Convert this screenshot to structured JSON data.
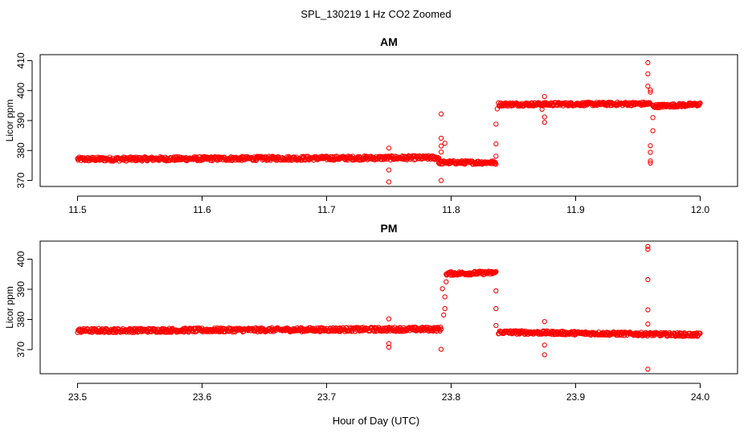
{
  "figure": {
    "title": "SPL_130219  1 Hz CO2 Zoomed",
    "xlabel": "Hour of Day (UTC)"
  },
  "colors": {
    "points": "#ff0000",
    "axes": "#000000"
  },
  "chart_data": [
    {
      "type": "scatter",
      "title": "AM",
      "ylabel": "Licor ppm",
      "xlim": [
        11.47,
        12.03
      ],
      "ylim": [
        368,
        412
      ],
      "xticks": [
        "11.5",
        "11.6",
        "11.7",
        "11.8",
        "11.9",
        "12.0"
      ],
      "xtick_values": [
        11.5,
        11.6,
        11.7,
        11.8,
        11.9,
        12.0
      ],
      "yticks": [
        "370",
        "380",
        "390",
        "400",
        "410"
      ],
      "ytick_values": [
        370,
        380,
        390,
        400,
        410
      ],
      "segments": [
        {
          "x_start": 11.5,
          "x_end": 11.79,
          "y_start": 377.1,
          "y_end": 377.6,
          "spread": 0.7
        },
        {
          "x_start": 11.79,
          "x_end": 11.836,
          "y_start": 376.0,
          "y_end": 376.0,
          "spread": 0.6
        },
        {
          "x_start": 11.838,
          "x_end": 11.96,
          "y_start": 395.4,
          "y_end": 395.6,
          "spread": 0.6
        },
        {
          "x_start": 11.962,
          "x_end": 12.0,
          "y_start": 394.8,
          "y_end": 395.4,
          "spread": 0.6
        }
      ],
      "outliers": [
        [
          11.75,
          380.8
        ],
        [
          11.75,
          373.5
        ],
        [
          11.75,
          369.5
        ],
        [
          11.792,
          392.2
        ],
        [
          11.792,
          384.1
        ],
        [
          11.792,
          381.5
        ],
        [
          11.792,
          379.5
        ],
        [
          11.792,
          370.0
        ],
        [
          11.795,
          382.4
        ],
        [
          11.836,
          388.8
        ],
        [
          11.836,
          382.2
        ],
        [
          11.836,
          378.1
        ],
        [
          11.837,
          393.9
        ],
        [
          11.875,
          398.0
        ],
        [
          11.875,
          391.2
        ],
        [
          11.875,
          389.4
        ],
        [
          11.873,
          393.8
        ],
        [
          11.958,
          409.3
        ],
        [
          11.958,
          405.6
        ],
        [
          11.958,
          401.5
        ],
        [
          11.96,
          400.2
        ],
        [
          11.96,
          399.5
        ],
        [
          11.962,
          391.0
        ],
        [
          11.962,
          386.6
        ],
        [
          11.96,
          381.6
        ],
        [
          11.96,
          379.4
        ],
        [
          11.96,
          376.5
        ],
        [
          11.96,
          375.8
        ]
      ]
    },
    {
      "type": "scatter",
      "title": "PM",
      "ylabel": "Licor ppm",
      "xlim": [
        23.47,
        24.03
      ],
      "ylim": [
        362,
        406
      ],
      "xticks": [
        "23.5",
        "23.6",
        "23.7",
        "23.8",
        "23.9",
        "24.0"
      ],
      "xtick_values": [
        23.5,
        23.6,
        23.7,
        23.8,
        23.9,
        24.0
      ],
      "yticks": [
        "370",
        "380",
        "390",
        "400"
      ],
      "ytick_values": [
        370,
        380,
        390,
        400
      ],
      "segments": [
        {
          "x_start": 23.5,
          "x_end": 23.792,
          "y_start": 376.3,
          "y_end": 376.8,
          "spread": 0.7
        },
        {
          "x_start": 23.796,
          "x_end": 23.836,
          "y_start": 395.2,
          "y_end": 395.5,
          "spread": 0.6
        },
        {
          "x_start": 23.838,
          "x_end": 24.0,
          "y_start": 375.8,
          "y_end": 374.9,
          "spread": 0.6
        }
      ],
      "outliers": [
        [
          23.75,
          380.2
        ],
        [
          23.75,
          372.0
        ],
        [
          23.75,
          370.8
        ],
        [
          23.792,
          370.1
        ],
        [
          23.793,
          390.2
        ],
        [
          23.794,
          381.5
        ],
        [
          23.795,
          387.5
        ],
        [
          23.796,
          392.5
        ],
        [
          23.795,
          383.6
        ],
        [
          23.836,
          395.8
        ],
        [
          23.836,
          389.5
        ],
        [
          23.836,
          383.6
        ],
        [
          23.836,
          378.0
        ],
        [
          23.875,
          379.3
        ],
        [
          23.875,
          371.5
        ],
        [
          23.875,
          368.3
        ],
        [
          23.958,
          404.2
        ],
        [
          23.958,
          403.3
        ],
        [
          23.958,
          393.2
        ],
        [
          23.958,
          383.2
        ],
        [
          23.958,
          378.5
        ],
        [
          23.958,
          363.5
        ]
      ]
    }
  ]
}
